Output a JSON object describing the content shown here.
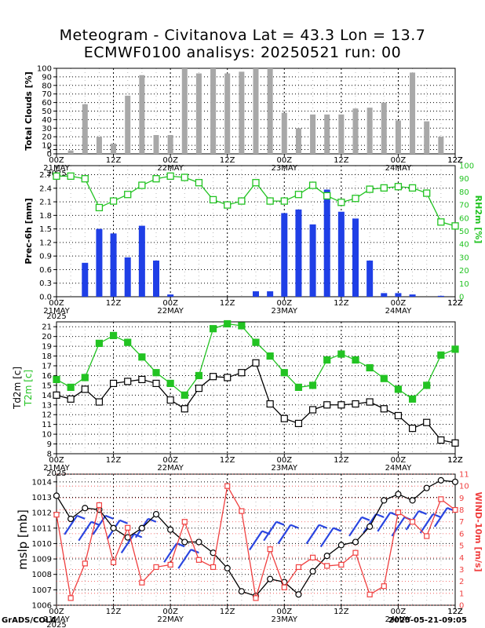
{
  "title_line1": "Meteogram - Civitanova Lat = 43.3 Lon = 13.7",
  "title_line2": "ECMWF0100 analisys: 20250521 run: 00",
  "x_axis": {
    "tick_labels": [
      "00Z",
      "12Z",
      "00Z",
      "12Z",
      "00Z",
      "12Z",
      "00Z",
      "12Z"
    ],
    "date_labels": [
      {
        "at": 0,
        "text": "21MAY"
      },
      {
        "at": 0,
        "text": "2025"
      },
      {
        "at": 2,
        "text": "22MAY"
      },
      {
        "at": 4,
        "text": "23MAY"
      },
      {
        "at": 6,
        "text": "24MAY"
      }
    ]
  },
  "chart_data": [
    {
      "type": "bar",
      "name": "clouds",
      "ylabel": "Total Clouds [%]",
      "ylim": [
        0,
        100
      ],
      "yticks": [
        0,
        5,
        10,
        20,
        30,
        40,
        50,
        60,
        70,
        80,
        90,
        100
      ],
      "color": "#a8a8a8",
      "x_steps": [
        1,
        2,
        3,
        4,
        5,
        6,
        7,
        8,
        9,
        10,
        11,
        12,
        13,
        14,
        15,
        16,
        17,
        18,
        19,
        20,
        21,
        22,
        23,
        24,
        25,
        26,
        27,
        28
      ],
      "values": [
        4,
        58,
        20,
        12,
        68,
        92,
        22,
        22,
        100,
        94,
        100,
        94,
        96,
        100,
        100,
        48,
        30,
        46,
        46,
        46,
        53,
        54,
        60,
        39,
        95,
        38,
        20,
        0
      ]
    },
    {
      "type": "bar",
      "name": "precip",
      "ylabel": "Prec-6h [mm]",
      "ylim": [
        0,
        2.9
      ],
      "yticks": [
        0,
        0.3,
        0.6,
        0.9,
        1.2,
        1.5,
        1.8,
        2.1,
        2.4,
        2.7
      ],
      "color": "#1f3fe6",
      "x_steps": [
        1,
        2,
        3,
        4,
        5,
        6,
        7,
        8,
        9,
        10,
        11,
        12,
        13,
        14,
        15,
        16,
        17,
        18,
        19,
        20,
        21,
        22,
        23,
        24,
        25,
        26,
        27,
        28
      ],
      "values": [
        0,
        0.75,
        1.5,
        1.4,
        0.87,
        1.57,
        0.8,
        0.05,
        0,
        0,
        0,
        0,
        0,
        0.12,
        0.12,
        1.85,
        1.93,
        1.6,
        2.37,
        1.88,
        1.73,
        0.8,
        0.08,
        0.08,
        0.05,
        0,
        0.02,
        0
      ],
      "rh": {
        "ylabel": "RH2m [%]",
        "ylim": [
          0,
          100
        ],
        "yticks": [
          0,
          10,
          20,
          30,
          40,
          50,
          60,
          70,
          80,
          90,
          100
        ],
        "color": "#22c322",
        "x_steps": [
          0,
          1,
          2,
          3,
          4,
          5,
          6,
          7,
          8,
          9,
          10,
          11,
          12,
          13,
          14,
          15,
          16,
          17,
          18,
          19,
          20,
          21,
          22,
          23,
          24,
          25,
          26,
          27,
          28
        ],
        "values": [
          92,
          92,
          90,
          68,
          73,
          78,
          85,
          90,
          92,
          91,
          87,
          74,
          70,
          73,
          87,
          73,
          73,
          78,
          85,
          77,
          72,
          75,
          82,
          83,
          84,
          83,
          79,
          57,
          54
        ]
      }
    },
    {
      "type": "line",
      "name": "temperature",
      "ylabel": "Td2m [c]",
      "ylabel2": "T2m [c]",
      "ylim": [
        8,
        21.5
      ],
      "yticks": [
        8,
        9,
        10,
        11,
        12,
        13,
        14,
        15,
        16,
        17,
        18,
        19,
        20,
        21
      ],
      "series": [
        {
          "name": "T2m",
          "color": "#22c322",
          "x_steps": [
            0,
            1,
            2,
            3,
            4,
            5,
            6,
            7,
            8,
            9,
            10,
            11,
            12,
            13,
            14,
            15,
            16,
            17,
            18,
            19,
            20,
            21,
            22,
            23,
            24,
            25,
            26,
            27,
            28
          ],
          "values": [
            15.6,
            14.8,
            15.8,
            19.3,
            20.1,
            19.4,
            17.9,
            16.3,
            15.2,
            14.0,
            16.0,
            20.8,
            21.3,
            21.1,
            19.4,
            18.0,
            16.3,
            14.8,
            15.0,
            17.6,
            18.2,
            17.6,
            16.8,
            15.7,
            14.6,
            13.6,
            15.0,
            18.1,
            18.7
          ]
        },
        {
          "name": "Td2m",
          "color": "#000000",
          "x_steps": [
            0,
            1,
            2,
            3,
            4,
            5,
            6,
            7,
            8,
            9,
            10,
            11,
            12,
            13,
            14,
            15,
            16,
            17,
            18,
            19,
            20,
            21,
            22,
            23,
            24,
            25,
            26,
            27,
            28
          ],
          "values": [
            14.0,
            13.6,
            14.6,
            13.3,
            15.2,
            15.4,
            15.6,
            15.2,
            13.5,
            12.6,
            14.7,
            15.9,
            15.8,
            16.3,
            17.3,
            13.1,
            11.6,
            11.1,
            12.5,
            13.0,
            13.0,
            13.1,
            13.3,
            12.6,
            11.9,
            10.6,
            11.2,
            9.4,
            9.1
          ]
        }
      ]
    },
    {
      "type": "line",
      "name": "pressure_wind",
      "ylabel": "mslp [mb]",
      "ylabel2": "WIND-10m [m/s]",
      "ylim": [
        1006,
        1014.5
      ],
      "yticks": [
        1006,
        1007,
        1008,
        1009,
        1010,
        1011,
        1012,
        1013,
        1014
      ],
      "ylim2": [
        0,
        11
      ],
      "yticks2": [
        0,
        1,
        2,
        3,
        4,
        5,
        6,
        7,
        8,
        9,
        10,
        11
      ],
      "series": [
        {
          "name": "mslp",
          "color": "#000000",
          "x_steps": [
            0,
            1,
            2,
            3,
            4,
            5,
            6,
            7,
            8,
            9,
            10,
            11,
            12,
            13,
            14,
            15,
            16,
            17,
            18,
            19,
            20,
            21,
            22,
            23,
            24,
            25,
            26,
            27,
            28
          ],
          "values": [
            1013.1,
            1011.6,
            1012.3,
            1012.2,
            1011.0,
            1010.4,
            1011.0,
            1011.9,
            1010.9,
            1010.1,
            1010.1,
            1009.4,
            1008.4,
            1006.9,
            1006.6,
            1007.7,
            1007.5,
            1006.7,
            1008.2,
            1009.2,
            1009.9,
            1010.1,
            1011.1,
            1012.8,
            1013.2,
            1012.8,
            1013.6,
            1014.1,
            1014.0
          ]
        },
        {
          "name": "wind",
          "color": "#f04040",
          "x_steps": [
            0,
            1,
            2,
            3,
            4,
            5,
            6,
            7,
            8,
            9,
            10,
            11,
            12,
            13,
            14,
            15,
            16,
            17,
            18,
            19,
            20,
            21,
            22,
            23,
            24,
            25,
            26,
            27,
            28
          ],
          "values": [
            7.6,
            0.6,
            3.5,
            8.4,
            3.6,
            6.5,
            1.9,
            3.2,
            3.4,
            7.0,
            3.8,
            3.2,
            10.0,
            7.9,
            0.6,
            4.7,
            1.5,
            3.2,
            4.0,
            3.3,
            3.4,
            4.4,
            0.9,
            1.6,
            7.8,
            7.0,
            5.8,
            8.9,
            8.0
          ]
        }
      ]
    }
  ],
  "footer_left": "GrADS/COLA",
  "footer_right": "2025-05-21-09:05"
}
